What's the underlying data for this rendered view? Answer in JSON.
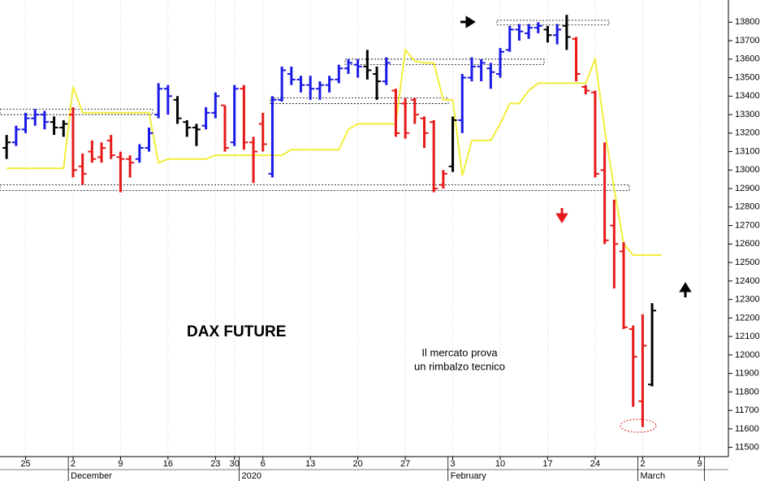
{
  "chart_data": {
    "type": "ohlc",
    "title": "DAX FUTURE",
    "annotation": [
      "Il mercato prova",
      "un rimbalzo tecnico"
    ],
    "categories": [
      null,
      null,
      "25",
      null,
      null,
      null,
      null,
      "2",
      null,
      null,
      null,
      null,
      "9",
      null,
      null,
      null,
      null,
      "16",
      null,
      null,
      null,
      null,
      "23",
      null,
      "30",
      null,
      null,
      "6",
      null,
      null,
      null,
      null,
      "13",
      null,
      null,
      null,
      null,
      "20",
      null,
      null,
      null,
      null,
      "27",
      null,
      null,
      null,
      null,
      "3",
      null,
      null,
      null,
      null,
      "10",
      null,
      null,
      null,
      null,
      "17",
      null,
      null,
      null,
      null,
      "24",
      null,
      null,
      null,
      null,
      "2",
      null,
      null,
      null,
      null,
      null,
      "9",
      null
    ],
    "months": [
      null,
      null,
      null,
      null,
      null,
      null,
      null,
      "December",
      null,
      null,
      null,
      null,
      null,
      null,
      null,
      null,
      null,
      null,
      null,
      null,
      null,
      null,
      null,
      null,
      null,
      "2020",
      null,
      null,
      null,
      null,
      null,
      null,
      null,
      null,
      null,
      null,
      null,
      null,
      null,
      null,
      null,
      null,
      null,
      null,
      null,
      null,
      null,
      "February",
      null,
      null,
      null,
      null,
      null,
      null,
      null,
      null,
      null,
      null,
      null,
      null,
      null,
      null,
      null,
      null,
      null,
      null,
      null,
      "March",
      null,
      null,
      null,
      null,
      null,
      null
    ],
    "open": [
      13120,
      13150,
      13220,
      13280,
      13300,
      13260,
      13230,
      13300,
      13020,
      13100,
      13070,
      13160,
      13070,
      13060,
      13060,
      13120,
      13300,
      13440,
      13380,
      13260,
      13230,
      13240,
      13310,
      13350,
      13150,
      13440,
      13150,
      13250,
      12980,
      13380,
      13520,
      13490,
      13460,
      13440,
      13460,
      13490,
      13550,
      13570,
      13560,
      13520,
      13480,
      13430,
      13360,
      13380,
      13280,
      13260,
      12920,
      13020,
      13270,
      13500,
      13560,
      13550,
      13520,
      13650,
      13760,
      13740,
      13770,
      13760,
      13730,
      13780,
      13710,
      13450,
      13420,
      13000,
      12700,
      12560,
      12140,
      11750,
      11840,
      null,
      null,
      null,
      null,
      null
    ],
    "high": [
      13190,
      13240,
      13310,
      13330,
      13320,
      13290,
      13270,
      13340,
      13090,
      13160,
      13150,
      13190,
      13100,
      13080,
      13140,
      13230,
      13470,
      13460,
      13400,
      13270,
      13250,
      13340,
      13420,
      13350,
      13460,
      13460,
      13180,
      13310,
      13400,
      13560,
      13560,
      13510,
      13510,
      13480,
      13510,
      13570,
      13600,
      13600,
      13650,
      13560,
      13610,
      13440,
      13390,
      13390,
      13290,
      13270,
      13000,
      13290,
      13520,
      13610,
      13600,
      13580,
      13660,
      13780,
      13790,
      13790,
      13800,
      13780,
      13790,
      13840,
      13720,
      13460,
      13430,
      13150,
      12840,
      12610,
      12160,
      12220,
      12280,
      null,
      null,
      null,
      null,
      null
    ],
    "low": [
      13060,
      13130,
      13200,
      13240,
      13220,
      13190,
      13180,
      12960,
      12920,
      13040,
      13040,
      13060,
      12880,
      12960,
      13040,
      13100,
      13280,
      13300,
      13250,
      13180,
      13130,
      13220,
      13280,
      13100,
      13130,
      13110,
      12930,
      13100,
      12960,
      13370,
      13460,
      13420,
      13380,
      13380,
      13420,
      13470,
      13520,
      13500,
      13490,
      13380,
      13460,
      13180,
      13170,
      13250,
      13120,
      12880,
      12900,
      12990,
      13200,
      13480,
      13480,
      13440,
      13500,
      13640,
      13700,
      13710,
      13740,
      13690,
      13680,
      13650,
      13480,
      13410,
      12960,
      12600,
      12360,
      12140,
      11720,
      11610,
      11830,
      null,
      null,
      null,
      null,
      null
    ],
    "close": [
      13150,
      13220,
      13280,
      13300,
      13260,
      13230,
      13250,
      13000,
      12980,
      13060,
      13120,
      13080,
      13060,
      13040,
      13120,
      13200,
      13440,
      13400,
      13280,
      13230,
      13220,
      13310,
      13400,
      13120,
      13440,
      13150,
      13100,
      13140,
      13380,
      13540,
      13490,
      13460,
      13440,
      13460,
      13490,
      13550,
      13580,
      13560,
      13540,
      13480,
      13580,
      13200,
      13200,
      13300,
      13200,
      12900,
      12980,
      13270,
      13500,
      13560,
      13580,
      13530,
      13640,
      13760,
      13750,
      13770,
      13780,
      13730,
      13760,
      13720,
      13520,
      13430,
      12980,
      12620,
      12600,
      12150,
      11990,
      12050,
      12240,
      null,
      null,
      null,
      null,
      null
    ],
    "colors": [
      "#000000",
      "#1a1ae6",
      "#1a1ae6",
      "#1a1ae6",
      "#1a1ae6",
      "#000000",
      "#000000",
      "#e61919",
      "#e61919",
      "#e61919",
      "#e61919",
      "#e61919",
      "#e61919",
      "#e61919",
      "#1a1ae6",
      "#1a1ae6",
      "#1a1ae6",
      "#1a1ae6",
      "#000000",
      "#000000",
      "#000000",
      "#1a1ae6",
      "#1a1ae6",
      "#e61919",
      "#1a1ae6",
      "#e61919",
      "#e61919",
      "#e61919",
      "#1a1ae6",
      "#1a1ae6",
      "#1a1ae6",
      "#1a1ae6",
      "#1a1ae6",
      "#1a1ae6",
      "#1a1ae6",
      "#1a1ae6",
      "#1a1ae6",
      "#1a1ae6",
      "#000000",
      "#000000",
      "#1a1ae6",
      "#e61919",
      "#e61919",
      "#e61919",
      "#e61919",
      "#e61919",
      "#e61919",
      "#000000",
      "#1a1ae6",
      "#1a1ae6",
      "#1a1ae6",
      "#1a1ae6",
      "#1a1ae6",
      "#1a1ae6",
      "#1a1ae6",
      "#1a1ae6",
      "#1a1ae6",
      "#000000",
      "#1a1ae6",
      "#000000",
      "#e61919",
      "#e61919",
      "#e61919",
      "#e61919",
      "#e61919",
      "#e61919",
      "#e61919",
      "#e61919",
      "#000000",
      null,
      null,
      null,
      null,
      null
    ],
    "line": {
      "color": "#f2ee3a",
      "values": [
        13010,
        13010,
        13010,
        13010,
        13010,
        13010,
        13010,
        13450,
        13310,
        13310,
        13310,
        13310,
        13310,
        13310,
        13310,
        13310,
        13040,
        13060,
        13060,
        13060,
        13060,
        13060,
        13080,
        13080,
        13080,
        13080,
        13080,
        13080,
        13080,
        13080,
        13110,
        13110,
        13110,
        13110,
        13110,
        13110,
        13220,
        13250,
        13250,
        13250,
        13250,
        13250,
        13650,
        13590,
        13580,
        13580,
        13380,
        13380,
        12970,
        13160,
        13160,
        13160,
        13250,
        13360,
        13360,
        13430,
        13470,
        13470,
        13470,
        13470,
        13470,
        13470,
        13600,
        13220,
        12900,
        12600,
        12540,
        12540,
        12540,
        12540,
        null,
        null,
        null,
        null
      ]
    },
    "zones": [
      {
        "low": 13300,
        "high": 13330
      },
      {
        "low": 12890,
        "high": 12920
      },
      {
        "low": 13360,
        "high": 13390
      },
      {
        "low": 13570,
        "high": 13600
      },
      {
        "low": 13785,
        "high": 13810
      }
    ],
    "ylim": [
      11450,
      13920
    ],
    "yticks": [
      11500,
      11600,
      11700,
      11800,
      11900,
      12000,
      12100,
      12200,
      12300,
      12400,
      12500,
      12600,
      12700,
      12800,
      12900,
      13000,
      13100,
      13200,
      13300,
      13400,
      13500,
      13600,
      13700,
      13800
    ],
    "grid": true
  }
}
